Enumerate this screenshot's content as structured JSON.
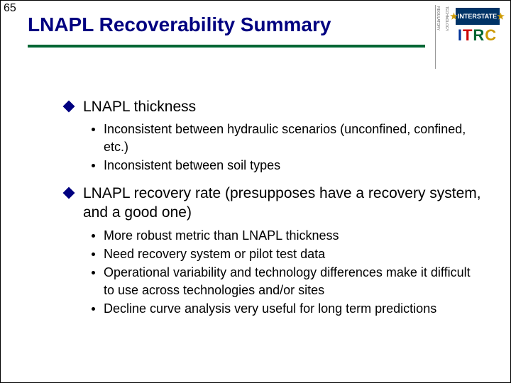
{
  "slide_number": "65",
  "title": "LNAPL Recoverability Summary",
  "logo": {
    "top_label": "INTERSTATE",
    "main_text": "ITRC",
    "side_top": "TECHNOLOGY",
    "side_mid": "COUNCIL",
    "side_bot": "REGULATORY"
  },
  "bullets": [
    {
      "text": "LNAPL thickness",
      "subs": [
        "Inconsistent between hydraulic scenarios (unconfined, confined, etc.)",
        "Inconsistent between soil types"
      ]
    },
    {
      "text": "LNAPL recovery rate (presupposes have a recovery system, and a good one)",
      "subs": [
        "More robust metric than LNAPL thickness",
        "Need recovery system or pilot test data",
        "Operational variability and technology differences make it difficult to use across technologies and/or sites",
        "Decline curve analysis very useful for long term predictions"
      ]
    }
  ],
  "colors": {
    "title_color": "#000080",
    "underline_color": "#006633",
    "diamond_color": "#000080",
    "text_color": "#000000",
    "background": "#ffffff"
  }
}
